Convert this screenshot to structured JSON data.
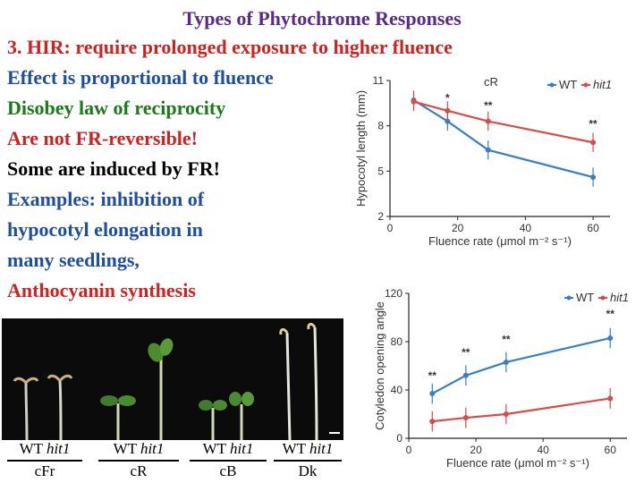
{
  "slide": {
    "title": "Types of Phytochrome Responses",
    "lines": [
      "3. HIR: require prolonged exposure to higher fluence",
      "Effect is proportional to fluence",
      "Disobey law of reciprocity",
      "Are not FR-reversible!",
      "Some are induced by FR!",
      "Examples: inhibition of",
      "hypocotyl elongation in",
      "many seedlings,",
      "Anthocyanin synthesis"
    ]
  },
  "photo": {
    "genotypes": [
      "WT",
      "hit1"
    ],
    "conditions": [
      "cFr",
      "cR",
      "cB",
      "Dk"
    ]
  },
  "colors": {
    "wt": "#3a7fc4",
    "hit1": "#d94a4a",
    "title": "#5b2a86"
  },
  "chart_data": [
    {
      "type": "line",
      "title": "cR",
      "xlabel": "Fluence rate (μmol m⁻² s⁻¹)",
      "ylabel": "Hypocotyl length (mm)",
      "xlim": [
        0,
        65
      ],
      "ylim": [
        2,
        11
      ],
      "xticks": [
        0,
        20,
        40,
        60
      ],
      "yticks": [
        2,
        5,
        8,
        11
      ],
      "legend": "top-right",
      "series": [
        {
          "name": "WT",
          "x": [
            7,
            17,
            29,
            60
          ],
          "y": [
            9.7,
            8.3,
            6.4,
            4.6
          ]
        },
        {
          "name": "hit1",
          "x": [
            7,
            17,
            29,
            60
          ],
          "y": [
            9.6,
            9.0,
            8.3,
            6.9
          ]
        }
      ],
      "annotations": [
        {
          "x": 17,
          "y": 9.6,
          "text": "*"
        },
        {
          "x": 29,
          "y": 9.1,
          "text": "**"
        },
        {
          "x": 60,
          "y": 7.9,
          "text": "**"
        }
      ]
    },
    {
      "type": "line",
      "title": "",
      "xlabel": "Fluence rate (μmol m⁻² s⁻¹)",
      "ylabel": "Cotyledon opening angle",
      "xlim": [
        0,
        65
      ],
      "ylim": [
        0,
        120
      ],
      "xticks": [
        0,
        20,
        40,
        60
      ],
      "yticks": [
        0,
        40,
        80,
        120
      ],
      "legend": "top-right",
      "series": [
        {
          "name": "WT",
          "x": [
            7,
            17,
            29,
            60
          ],
          "y": [
            37,
            52,
            63,
            83
          ]
        },
        {
          "name": "hit1",
          "x": [
            7,
            17,
            29,
            60
          ],
          "y": [
            14,
            17,
            20,
            33
          ]
        }
      ],
      "annotations": [
        {
          "x": 7,
          "y": 49,
          "text": "**"
        },
        {
          "x": 17,
          "y": 68,
          "text": "**"
        },
        {
          "x": 29,
          "y": 79,
          "text": "**"
        },
        {
          "x": 60,
          "y": 100,
          "text": "**"
        }
      ]
    }
  ]
}
